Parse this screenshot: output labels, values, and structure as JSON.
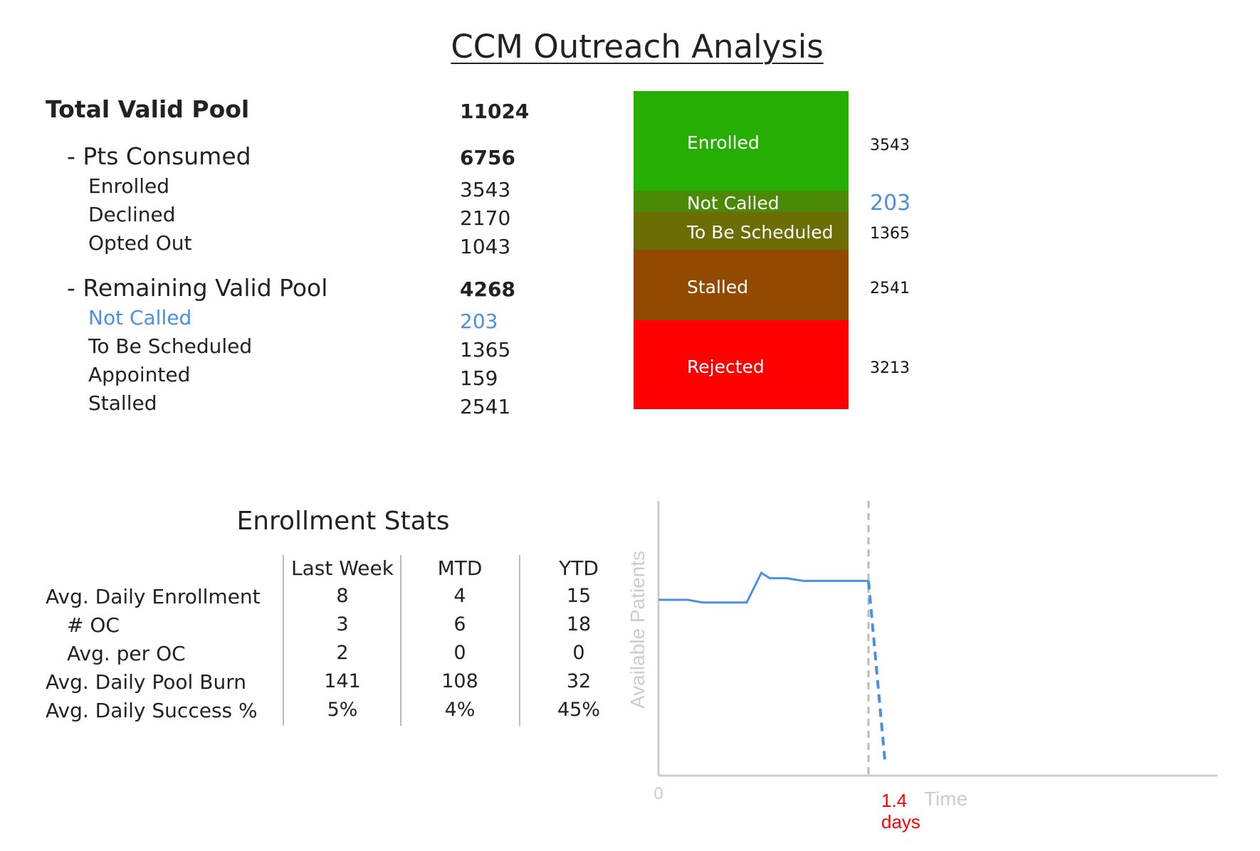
{
  "title": "CCM Outreach Analysis",
  "summary": {
    "total": {
      "label": "Total Valid Pool",
      "value": "11024"
    },
    "consumed": {
      "label": "- Pts Consumed",
      "value": "6756",
      "items": [
        {
          "label": "Enrolled",
          "value": "3543"
        },
        {
          "label": "Declined",
          "value": "2170"
        },
        {
          "label": "Opted Out",
          "value": "1043"
        }
      ]
    },
    "remaining": {
      "label": "- Remaining Valid Pool",
      "value": "4268",
      "items": [
        {
          "label": "Not Called",
          "value": "203",
          "highlight": true
        },
        {
          "label": "To Be Scheduled",
          "value": "1365"
        },
        {
          "label": "Appointed",
          "value": "159"
        },
        {
          "label": "Stalled",
          "value": "2541"
        }
      ]
    }
  },
  "stacked_bar": {
    "segments": [
      {
        "label": "Enrolled",
        "value": "3543",
        "color": "#27ae04"
      },
      {
        "label": "Not Called",
        "value": "203",
        "color": "#4b8a06",
        "value_color": "#4a90e2"
      },
      {
        "label": "To Be Scheduled",
        "value": "1365",
        "color": "#6d6d06"
      },
      {
        "label": "Stalled",
        "value": "2541",
        "color": "#924a00"
      },
      {
        "label": "Rejected",
        "value": "3213",
        "color": "#ff0000"
      }
    ]
  },
  "enrollment_stats": {
    "title": "Enrollment Stats",
    "columns": [
      "Last Week",
      "MTD",
      "YTD"
    ],
    "rows": [
      {
        "label": "Avg. Daily Enrollment",
        "indent": false,
        "values": [
          "8",
          "4",
          "15"
        ]
      },
      {
        "label": "# OC",
        "indent": true,
        "values": [
          "3",
          "6",
          "18"
        ]
      },
      {
        "label": "Avg. per OC",
        "indent": true,
        "values": [
          "2",
          "0",
          "0"
        ]
      },
      {
        "label": "Avg. Daily Pool Burn",
        "indent": false,
        "values": [
          "141",
          "108",
          "32"
        ]
      },
      {
        "label": "Avg. Daily Success %",
        "indent": false,
        "values": [
          "5%",
          "4%",
          "45%"
        ]
      }
    ]
  },
  "chart_data": {
    "type": "line",
    "ylabel": "Available Patients",
    "xlabel": "Time",
    "x_origin_label": "0",
    "marker_label": [
      "1.4",
      "days"
    ],
    "marker_color": "#ff0000",
    "line_color": "#4a90e2",
    "series_actual": {
      "x": [
        0.0,
        0.14,
        0.21,
        0.42,
        0.49,
        0.53,
        0.61,
        0.69,
        0.83,
        1.0
      ],
      "y": [
        0.65,
        0.65,
        0.64,
        0.64,
        0.75,
        0.73,
        0.73,
        0.72,
        0.72,
        0.72
      ]
    },
    "series_projection": {
      "x": [
        1.0,
        1.08
      ],
      "y": [
        0.72,
        0.04
      ]
    }
  }
}
